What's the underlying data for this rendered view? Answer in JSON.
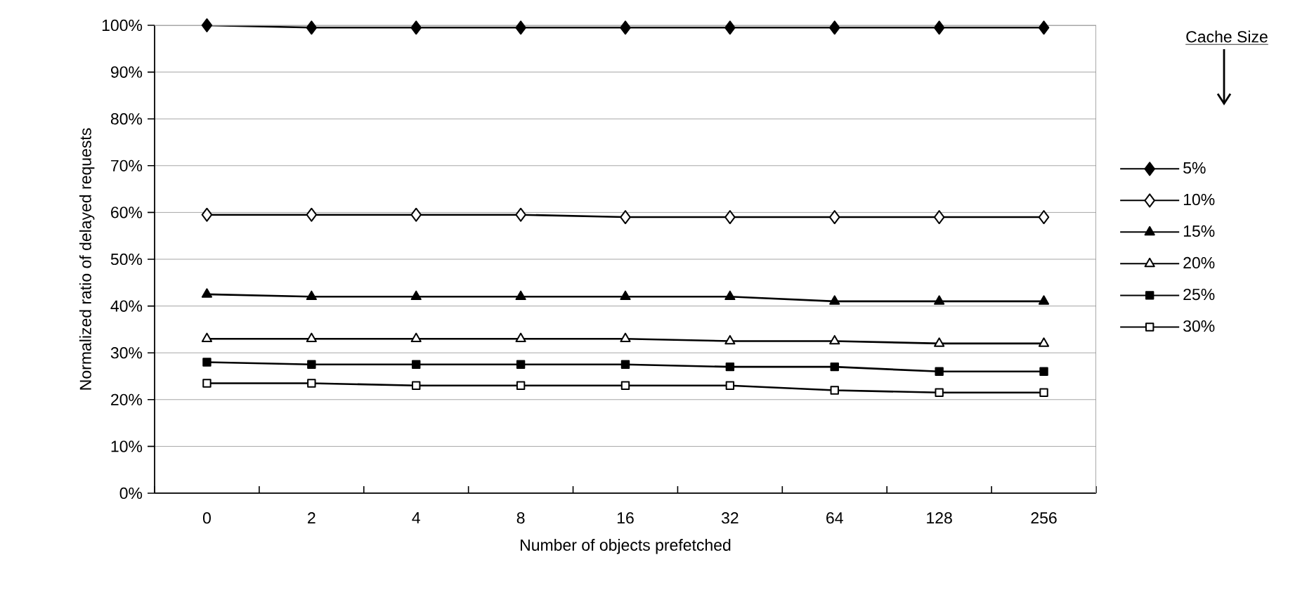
{
  "chart_data": {
    "type": "line",
    "xlabel": "Number of objects prefetched",
    "ylabel": "Normalized ratio of delayed requests",
    "legend_title": "Cache Size",
    "categories": [
      "0",
      "2",
      "4",
      "8",
      "16",
      "32",
      "64",
      "128",
      "256"
    ],
    "series": [
      {
        "name": "5%",
        "color": "#000000",
        "marker": "diamond",
        "values": [
          100,
          99.5,
          99.5,
          99.5,
          99.5,
          99.5,
          99.5,
          99.5,
          99.5
        ]
      },
      {
        "name": "10%",
        "color": "#000000",
        "marker": "diamond",
        "values": [
          59.5,
          59.5,
          59.5,
          59.5,
          59,
          59,
          59,
          59,
          59
        ]
      },
      {
        "name": "15%",
        "color": "#000000",
        "marker": "triangle",
        "values": [
          42.5,
          42,
          42,
          42,
          42,
          42,
          41,
          41,
          41
        ]
      },
      {
        "name": "20%",
        "color": "#000000",
        "marker": "triangle",
        "values": [
          33,
          33,
          33,
          33,
          33,
          32.5,
          32.5,
          32,
          32
        ]
      },
      {
        "name": "25%",
        "color": "#000000",
        "marker": "square",
        "values": [
          28,
          27.5,
          27.5,
          27.5,
          27.5,
          27,
          27,
          26,
          26
        ]
      },
      {
        "name": "30%",
        "color": "#000000",
        "marker": "square",
        "values": [
          23.5,
          23.5,
          23,
          23,
          23,
          23,
          22,
          21.5,
          21.5
        ]
      }
    ],
    "ylim": [
      0,
      100
    ],
    "yticks": [
      {
        "value": 0,
        "label": "0%"
      },
      {
        "value": 10,
        "label": "10%"
      },
      {
        "value": 20,
        "label": "20%"
      },
      {
        "value": 30,
        "label": "30%"
      },
      {
        "value": 40,
        "label": "40%"
      },
      {
        "value": 50,
        "label": "50%"
      },
      {
        "value": 60,
        "label": "60%"
      },
      {
        "value": 70,
        "label": "70%"
      },
      {
        "value": 80,
        "label": "80%"
      },
      {
        "value": 90,
        "label": "90%"
      },
      {
        "value": 100,
        "label": "100%"
      }
    ],
    "grid": "y",
    "legend": "right",
    "line_style": "solid"
  }
}
